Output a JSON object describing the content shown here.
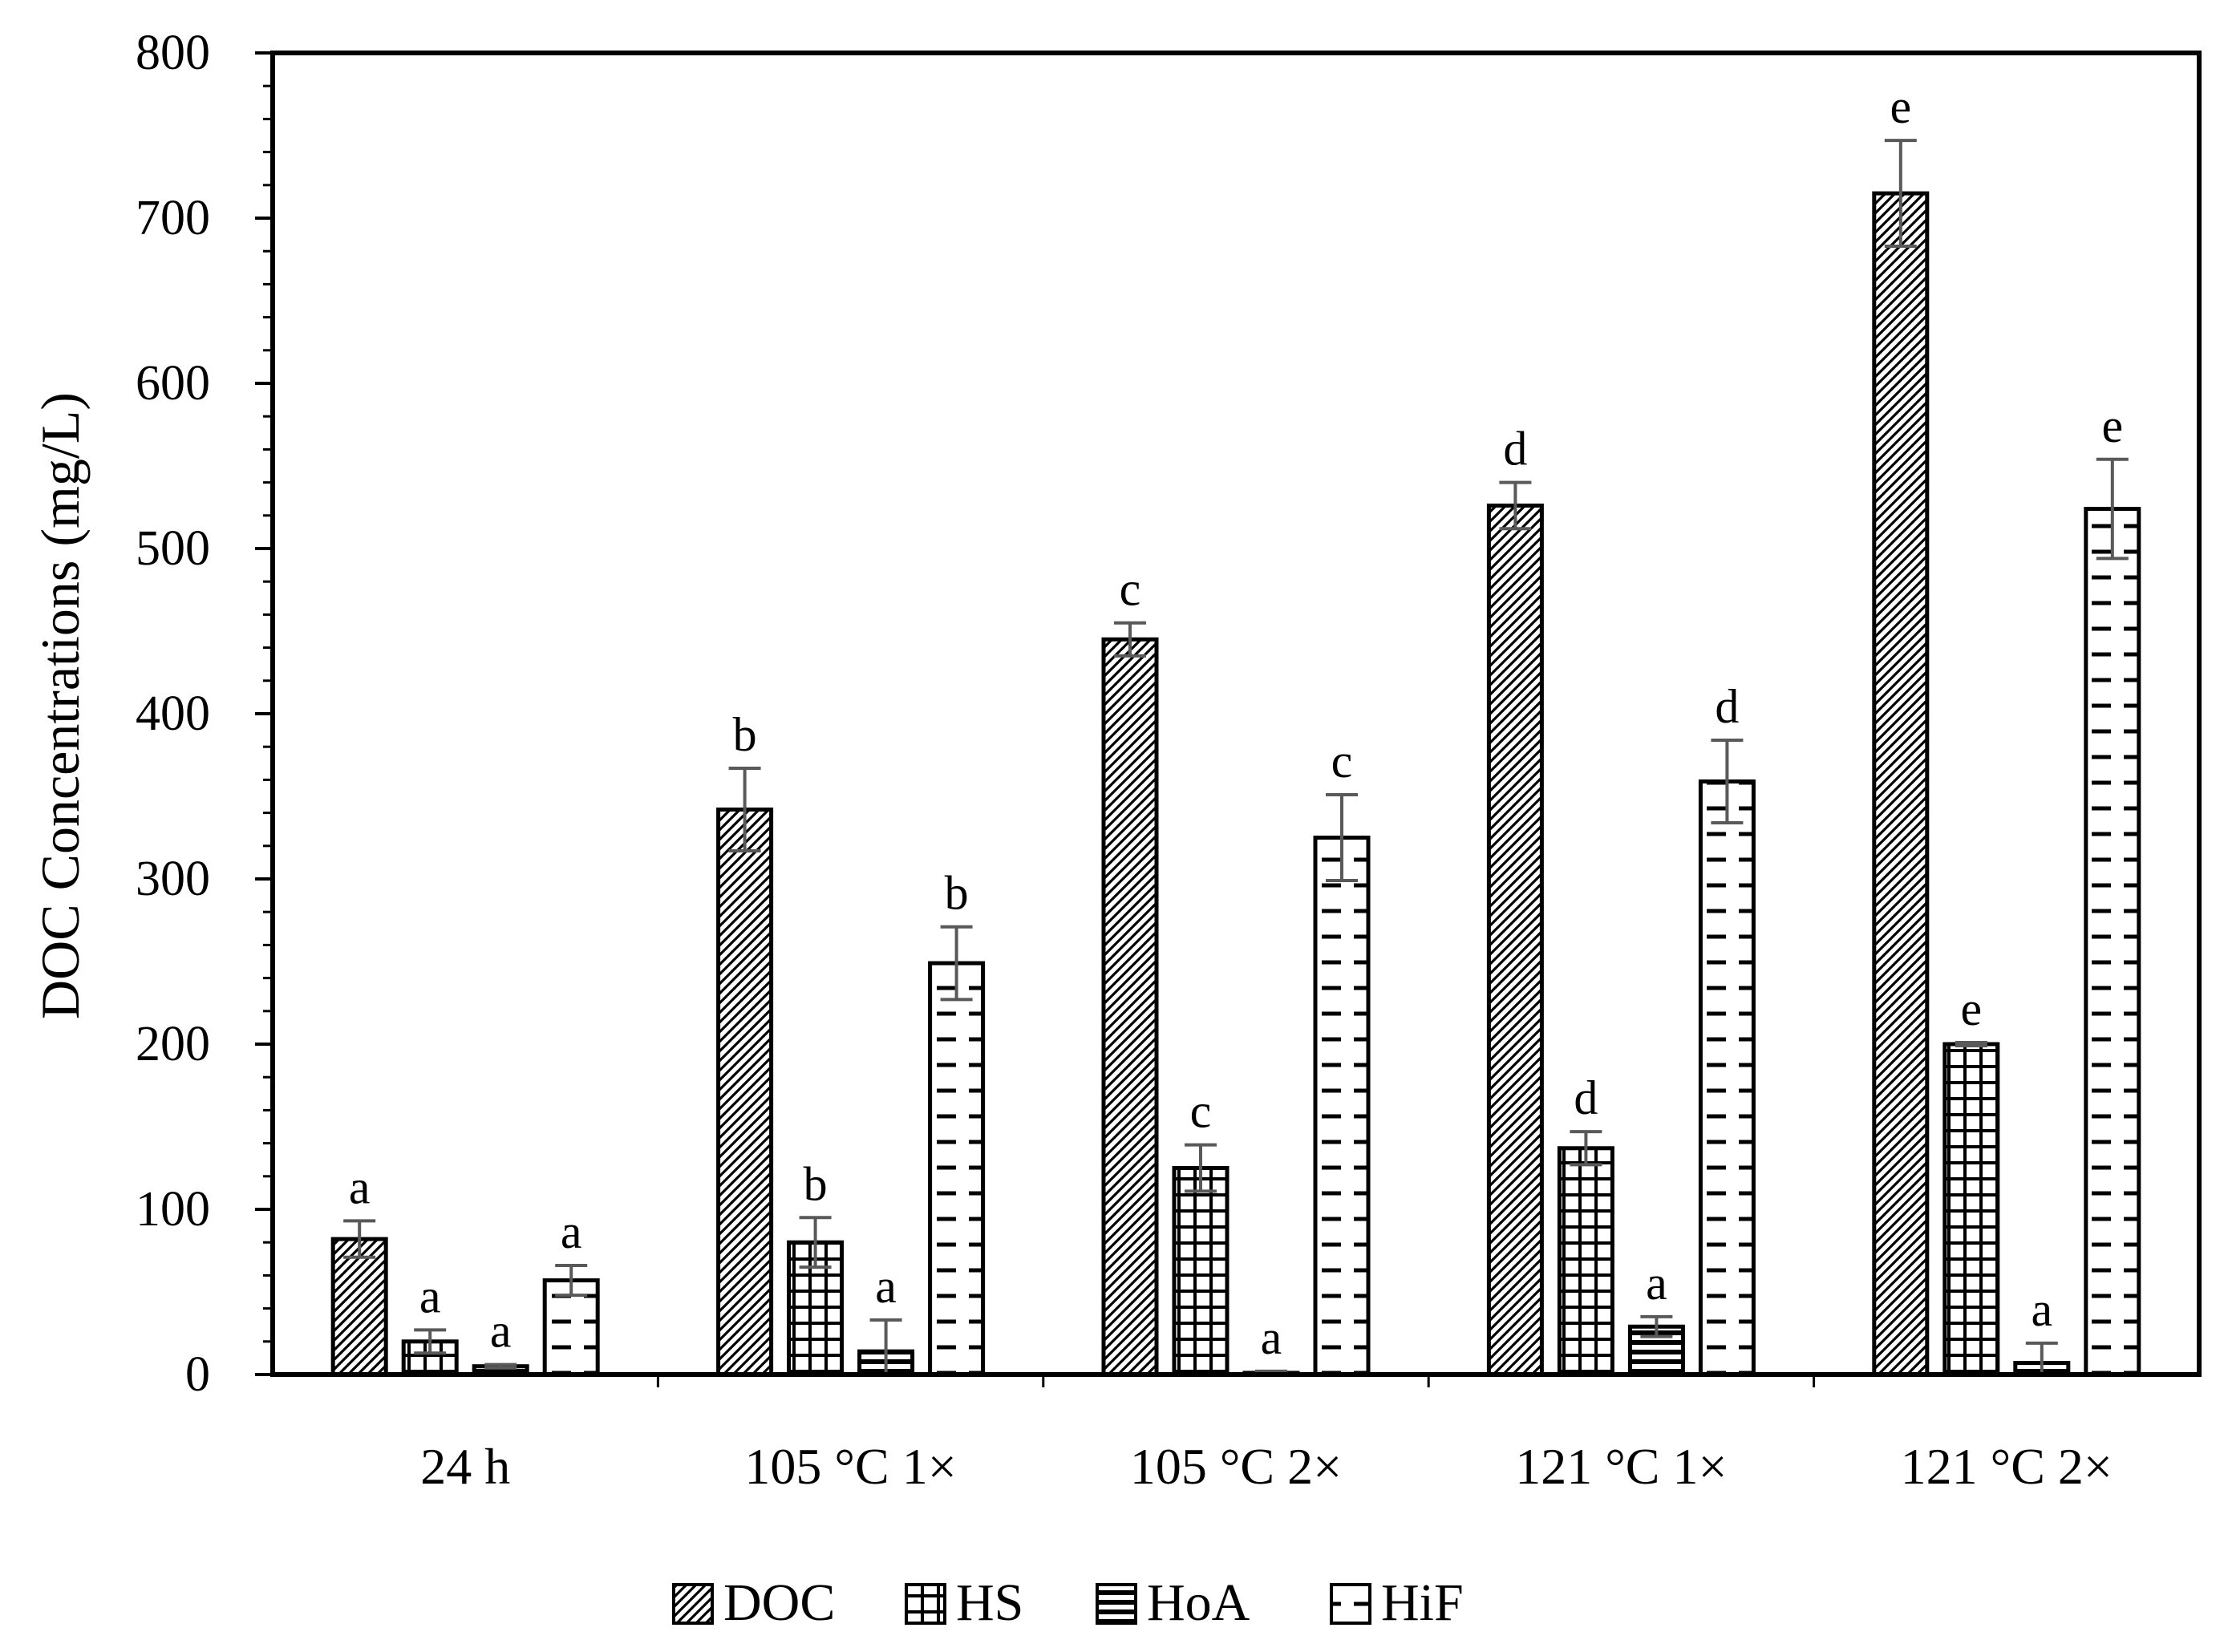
{
  "chart_data": {
    "type": "bar",
    "ylabel": "DOC Concentrations (mg/L)",
    "xlabel": "",
    "ylim": [
      0,
      800
    ],
    "yticks": [
      "0",
      "100",
      "200",
      "300",
      "400",
      "500",
      "600",
      "700",
      "800"
    ],
    "categories": [
      "24 h",
      "105 °C 1×",
      "105 °C 2×",
      "121 °C 1×",
      "121 °C 2×"
    ],
    "legend_position": "bottom",
    "series": [
      {
        "name": "DOC",
        "pattern": "diagonal",
        "values": [
          82,
          342,
          445,
          526,
          715
        ],
        "errors": [
          11,
          25,
          10,
          14,
          32
        ],
        "labels": [
          "a",
          "b",
          "c",
          "d",
          "e"
        ]
      },
      {
        "name": "HS",
        "pattern": "grid",
        "values": [
          20,
          80,
          125,
          137,
          200
        ],
        "errors": [
          7,
          15,
          14,
          10,
          1
        ],
        "labels": [
          "a",
          "b",
          "c",
          "d",
          "e"
        ]
      },
      {
        "name": "HoA",
        "pattern": "horizontal",
        "values": [
          5,
          14,
          1,
          29,
          7
        ],
        "errors": [
          1,
          19,
          1,
          6,
          12
        ],
        "labels": [
          "a",
          "a",
          "a",
          "a",
          "a"
        ]
      },
      {
        "name": "HiF",
        "pattern": "dash",
        "values": [
          57,
          249,
          325,
          359,
          524
        ],
        "errors": [
          9,
          22,
          26,
          25,
          30
        ],
        "labels": [
          "a",
          "b",
          "c",
          "d",
          "e"
        ]
      }
    ],
    "colors": {
      "bar_stroke": "#000000",
      "error_bar": "#595959",
      "fill": "#ffffff"
    }
  }
}
